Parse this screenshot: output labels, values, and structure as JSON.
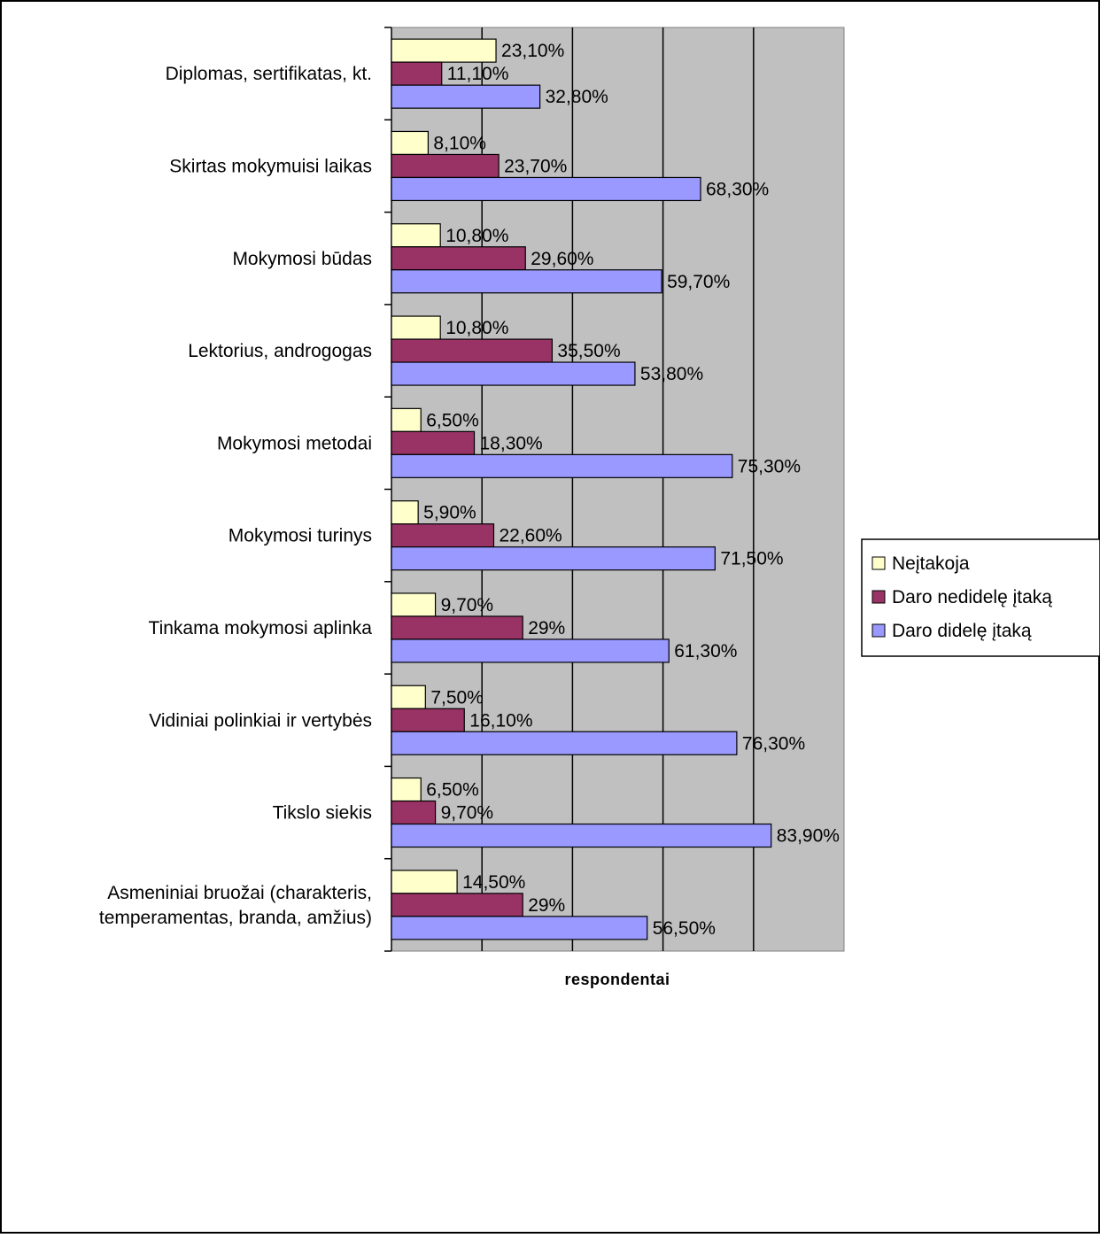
{
  "chart_data": {
    "type": "bar",
    "orientation": "horizontal",
    "xlabel": "respondentai",
    "ylabel": "",
    "xlim": [
      0,
      100
    ],
    "grid": true,
    "legend_position": "right",
    "categories": [
      "Diplomas, sertifikatas, kt.",
      "Skirtas mokymuisi laikas",
      "Mokymosi būdas",
      "Lektorius, androgogas",
      "Mokymosi metodai",
      "Mokymosi turinys",
      "Tinkama mokymosi aplinka",
      "Vidiniai polinkiai ir vertybės",
      "Tikslo siekis",
      "Asmeniniai bruožai (charakteris, temperamentas, branda, amžius)"
    ],
    "category_lines": [
      [
        "Diplomas, sertifikatas, kt."
      ],
      [
        "Skirtas mokymuisi laikas"
      ],
      [
        "Mokymosi būdas"
      ],
      [
        "Lektorius, androgogas"
      ],
      [
        "Mokymosi metodai"
      ],
      [
        "Mokymosi turinys"
      ],
      [
        "Tinkama mokymosi aplinka"
      ],
      [
        "Vidiniai polinkiai ir vertybės"
      ],
      [
        "Tikslo siekis"
      ],
      [
        "Asmeniniai bruožai (charakteris,",
        "temperamentas, branda, amžius)"
      ]
    ],
    "series": [
      {
        "name": "Neįtakoja",
        "color": "#ffffcc",
        "values": [
          23.1,
          8.1,
          10.8,
          10.8,
          6.5,
          5.9,
          9.7,
          7.5,
          6.5,
          14.5
        ],
        "labels": [
          "23,10%",
          "8,10%",
          "10,80%",
          "10,80%",
          "6,50%",
          "5,90%",
          "9,70%",
          "7,50%",
          "6,50%",
          "14,50%"
        ]
      },
      {
        "name": "Daro nedidelę įtaką",
        "color": "#993366",
        "values": [
          11.1,
          23.7,
          29.6,
          35.5,
          18.3,
          22.6,
          29,
          16.1,
          9.7,
          29
        ],
        "labels": [
          "11,10%",
          "23,70%",
          "29,60%",
          "35,50%",
          "18,30%",
          "22,60%",
          "29%",
          "16,10%",
          "9,70%",
          "29%"
        ]
      },
      {
        "name": "Daro didelę įtaką",
        "color": "#9999ff",
        "values": [
          32.8,
          68.3,
          59.7,
          53.8,
          75.3,
          71.5,
          61.3,
          76.3,
          83.9,
          56.5
        ],
        "labels": [
          "32,80%",
          "68,30%",
          "59,70%",
          "53,80%",
          "75,30%",
          "71,50%",
          "61,30%",
          "76,30%",
          "83,90%",
          "56,50%"
        ]
      }
    ],
    "colors": {
      "plot_background": "#c0c0c0",
      "gridline": "#000000"
    }
  }
}
